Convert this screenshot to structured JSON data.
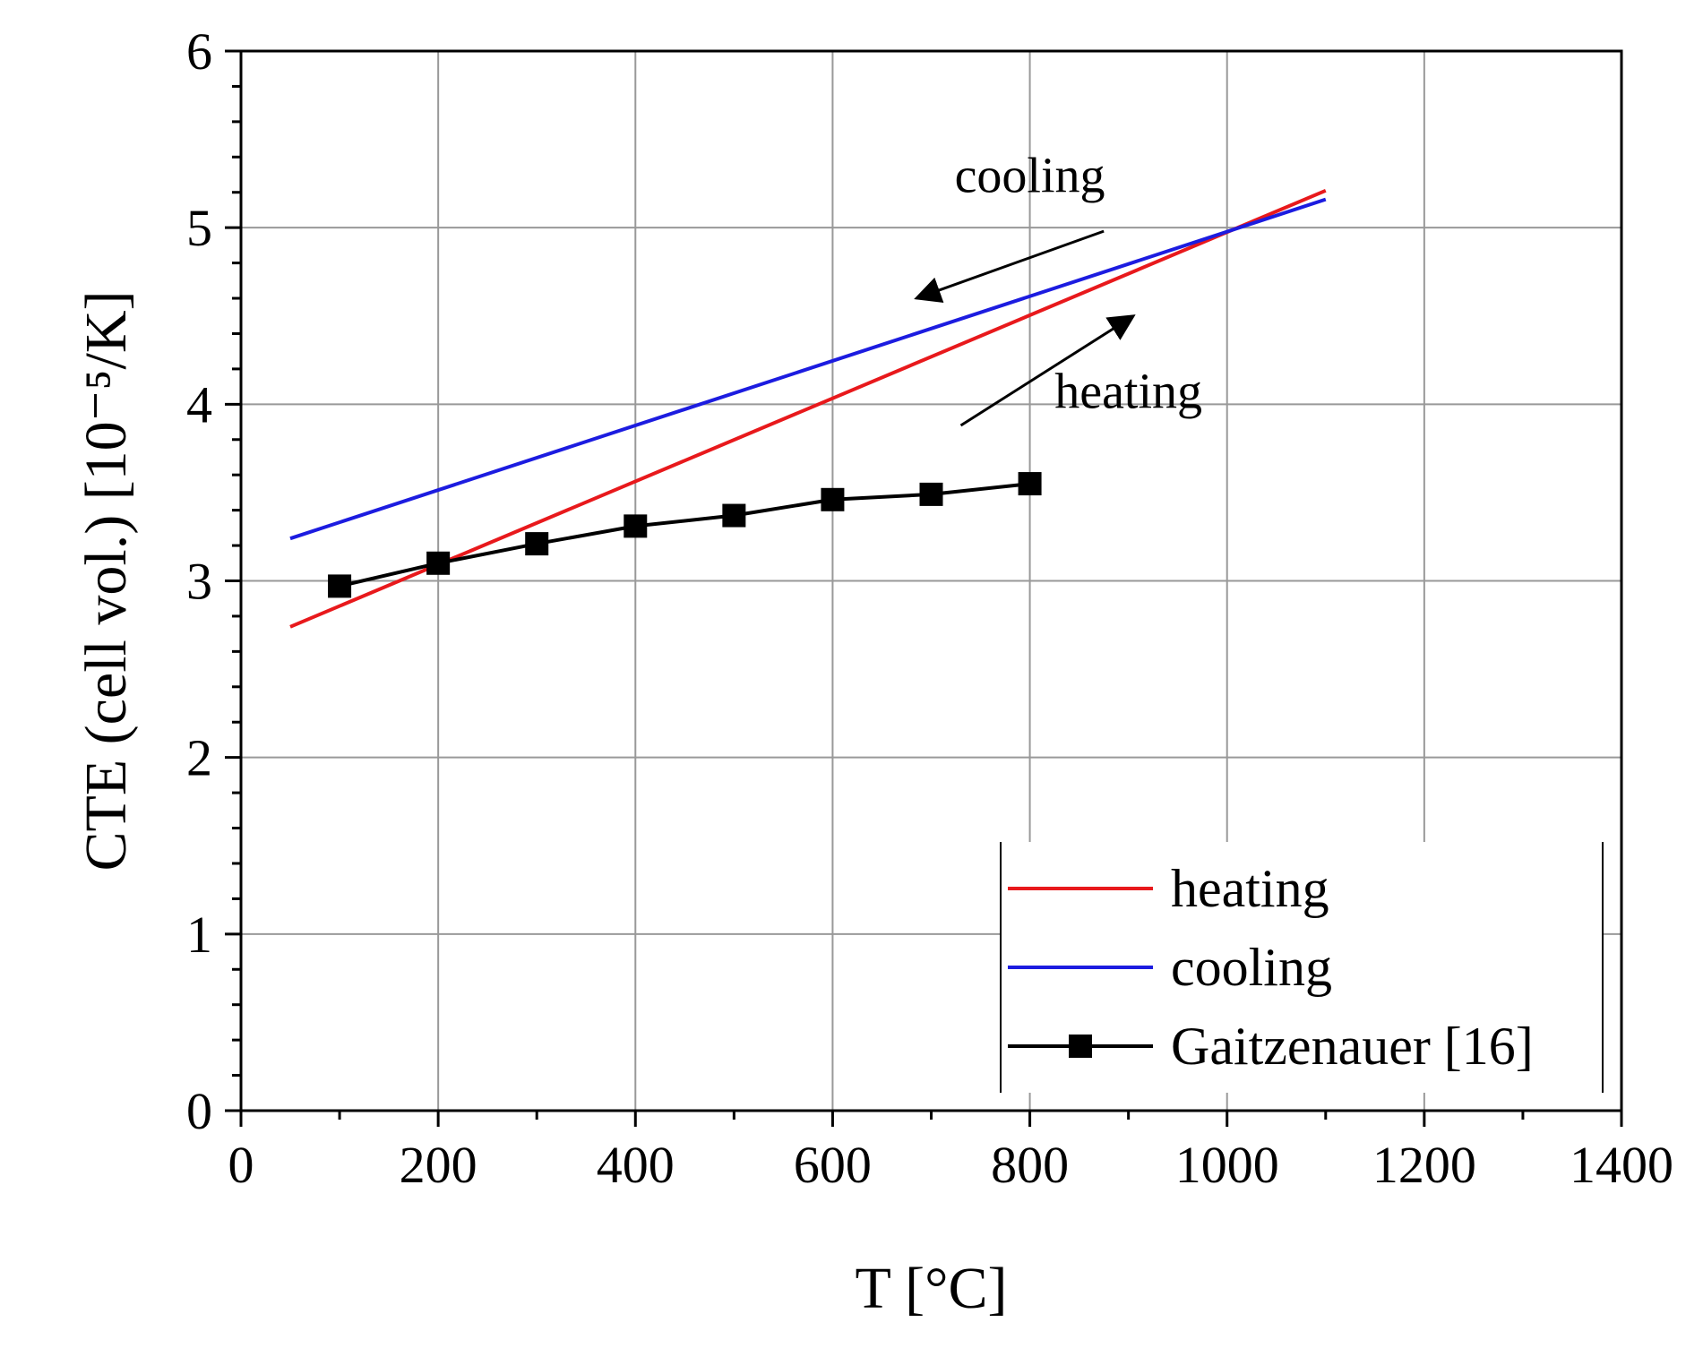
{
  "chart_data": {
    "type": "line",
    "xlabel": "T [°C]",
    "ylabel": "CTE (cell vol.) [10⁻⁵/K]",
    "xlim": [
      0,
      1400
    ],
    "ylim": [
      0,
      6
    ],
    "xticks": [
      0,
      200,
      400,
      600,
      800,
      1000,
      1200,
      1400
    ],
    "yticks": [
      0,
      1,
      2,
      3,
      4,
      5,
      6
    ],
    "grid": true,
    "legend_position": "bottom-right",
    "series": [
      {
        "name": "heating",
        "color": "#e8191c",
        "marker": "none",
        "x": [
          50,
          1100
        ],
        "y": [
          2.74,
          5.21
        ]
      },
      {
        "name": "cooling",
        "color": "#1c1ce0",
        "marker": "none",
        "x": [
          50,
          1100
        ],
        "y": [
          3.24,
          5.16
        ]
      },
      {
        "name": "Gaitzenauer [16]",
        "color": "#000000",
        "marker": "square",
        "x": [
          100,
          200,
          300,
          400,
          500,
          600,
          700,
          800
        ],
        "y": [
          2.97,
          3.1,
          3.21,
          3.31,
          3.37,
          3.46,
          3.49,
          3.55
        ]
      }
    ],
    "annotations": [
      {
        "text": "cooling",
        "direction": "toward lower T",
        "arrow_from": [
          875,
          4.98
        ],
        "arrow_to": [
          685,
          4.6
        ],
        "label_at": [
          800,
          5.2
        ]
      },
      {
        "text": "heating",
        "direction": "toward higher T",
        "arrow_from": [
          730,
          3.88
        ],
        "arrow_to": [
          905,
          4.5
        ],
        "label_at": [
          900,
          3.98
        ]
      }
    ]
  }
}
